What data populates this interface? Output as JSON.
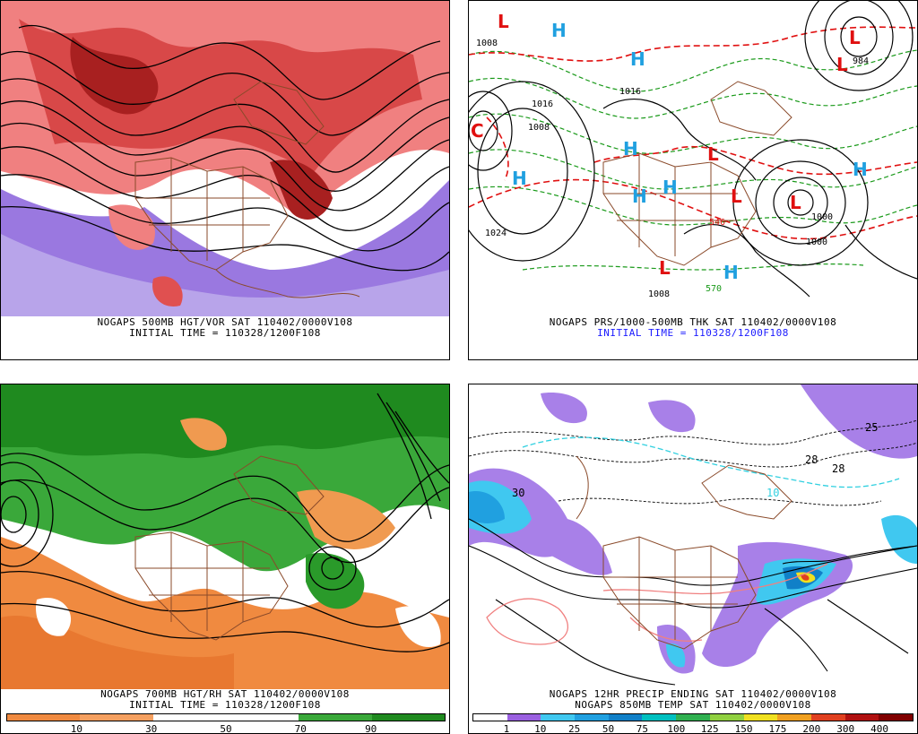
{
  "panels": {
    "p1": {
      "caption1": "NOGAPS 500MB HGT/VOR SAT 110402/0000V108",
      "caption2": "INITIAL TIME = 110328/1200F108"
    },
    "p2": {
      "caption1": "NOGAPS PRS/1000-500MB THK SAT 110402/0000V108",
      "caption2": "INITIAL TIME = 110328/1200F108",
      "labels": [
        "1008",
        "1016",
        "1016",
        "1024",
        "1000",
        "1008",
        "984",
        "546",
        "570",
        "1008",
        "1000"
      ]
    },
    "p3": {
      "caption1": "NOGAPS 700MB HGT/RH SAT 110402/0000V108",
      "caption2": "INITIAL TIME = 110328/1200F108",
      "colorbar_ticks": [
        "10",
        "30",
        "50",
        "70",
        "90"
      ]
    },
    "p4": {
      "caption1": "NOGAPS 12HR PRECIP ENDING SAT 110402/0000V108",
      "caption2": "NOGAPS 850MB TEMP SAT 110402/0000V108",
      "labels": [
        "30",
        "25",
        "28",
        "28",
        "10"
      ],
      "colorbar_ticks": [
        "1",
        "10",
        "25",
        "50",
        "75",
        "100",
        "125",
        "150",
        "175",
        "200",
        "300",
        "400"
      ]
    }
  },
  "colors": {
    "vor_pos": "#e05050",
    "vor_neg": "#8a5ad8",
    "rh_dry": "#f08a40",
    "rh_moist": "#1f9a1f",
    "precip": [
      "#ffffff",
      "#9a60e0",
      "#40c8f0",
      "#20a0e0",
      "#1080c8",
      "#00c0c0",
      "#30b050",
      "#90d040",
      "#f0e020",
      "#f0a020",
      "#e04020",
      "#b01010",
      "#800000"
    ]
  }
}
